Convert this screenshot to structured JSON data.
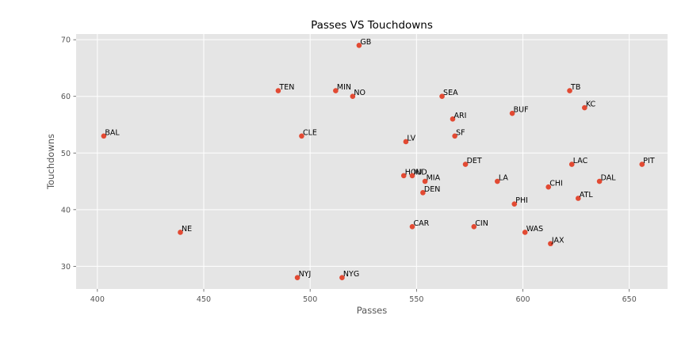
{
  "chart_data": {
    "type": "scatter",
    "title": "Passes VS Touchdowns",
    "xlabel": "Passes",
    "ylabel": "Touchdowns",
    "xlim": [
      390,
      668
    ],
    "ylim": [
      26,
      71
    ],
    "xticks": [
      400,
      450,
      500,
      550,
      600,
      650
    ],
    "yticks": [
      30,
      40,
      50,
      60,
      70
    ],
    "grid": true,
    "marker_color": "#E24A33",
    "background_color": "#E5E5E5",
    "points": [
      {
        "label": "GB",
        "x": 523,
        "y": 69
      },
      {
        "label": "TEN",
        "x": 485,
        "y": 61
      },
      {
        "label": "MIN",
        "x": 512,
        "y": 61
      },
      {
        "label": "NO",
        "x": 520,
        "y": 60
      },
      {
        "label": "SEA",
        "x": 562,
        "y": 60
      },
      {
        "label": "TB",
        "x": 622,
        "y": 61
      },
      {
        "label": "KC",
        "x": 629,
        "y": 58
      },
      {
        "label": "BUF",
        "x": 595,
        "y": 57
      },
      {
        "label": "ARI",
        "x": 567,
        "y": 56
      },
      {
        "label": "BAL",
        "x": 403,
        "y": 53
      },
      {
        "label": "CLE",
        "x": 496,
        "y": 53
      },
      {
        "label": "SF",
        "x": 568,
        "y": 53
      },
      {
        "label": "LV",
        "x": 545,
        "y": 52
      },
      {
        "label": "DET",
        "x": 573,
        "y": 48
      },
      {
        "label": "LAC",
        "x": 623,
        "y": 48
      },
      {
        "label": "PIT",
        "x": 656,
        "y": 48
      },
      {
        "label": "HOU",
        "x": 544,
        "y": 46
      },
      {
        "label": "IND",
        "x": 548,
        "y": 46
      },
      {
        "label": "MIA",
        "x": 554,
        "y": 45
      },
      {
        "label": "LA",
        "x": 588,
        "y": 45
      },
      {
        "label": "DAL",
        "x": 636,
        "y": 45
      },
      {
        "label": "CHI",
        "x": 612,
        "y": 44
      },
      {
        "label": "DEN",
        "x": 553,
        "y": 43
      },
      {
        "label": "ATL",
        "x": 626,
        "y": 42
      },
      {
        "label": "PHI",
        "x": 596,
        "y": 41
      },
      {
        "label": "CAR",
        "x": 548,
        "y": 37
      },
      {
        "label": "CIN",
        "x": 577,
        "y": 37
      },
      {
        "label": "NE",
        "x": 439,
        "y": 36
      },
      {
        "label": "WAS",
        "x": 601,
        "y": 36
      },
      {
        "label": "JAX",
        "x": 613,
        "y": 34
      },
      {
        "label": "NYJ",
        "x": 494,
        "y": 28
      },
      {
        "label": "NYG",
        "x": 515,
        "y": 28
      }
    ]
  }
}
